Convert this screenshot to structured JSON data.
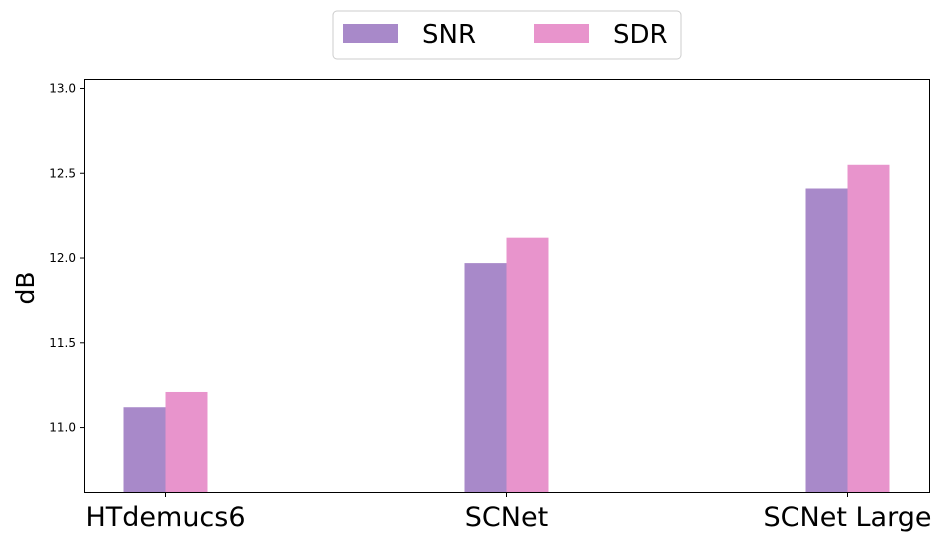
{
  "chart_data": {
    "type": "bar",
    "categories": [
      "HTdemucs6",
      "SCNet",
      "SCNet Large"
    ],
    "series": [
      {
        "name": "SNR",
        "values": [
          11.12,
          11.97,
          12.41
        ],
        "color": "#a889c9"
      },
      {
        "name": "SDR",
        "values": [
          11.21,
          12.12,
          12.55
        ],
        "color": "#e894cc"
      }
    ],
    "xlabel": "",
    "ylabel": "dB",
    "ylim": [
      10.62,
      13.05
    ],
    "yticks": [
      "11.0",
      "11.5",
      "12.0",
      "12.5",
      "13.0"
    ],
    "grid": false,
    "legend_position": "top-center"
  }
}
